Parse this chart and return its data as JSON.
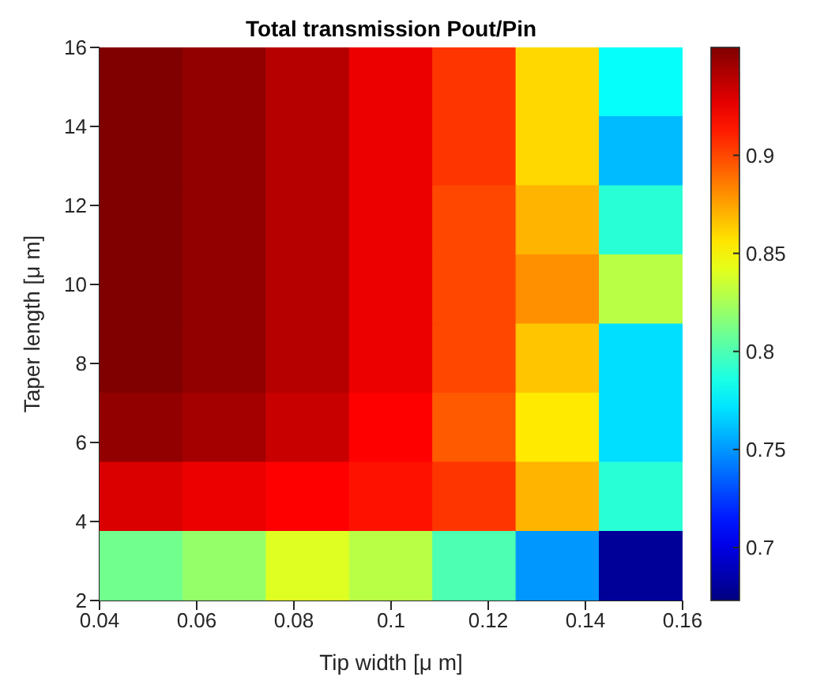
{
  "chart_data": {
    "type": "heatmap",
    "title": "Total transmission Pout/Pin",
    "xlabel": "Tip width [μ m]",
    "ylabel": "Taper length [μ m]",
    "xlim": [
      0.04,
      0.16
    ],
    "xticks": [
      0.04,
      0.06,
      0.08,
      0.1,
      0.12,
      0.14,
      0.16
    ],
    "ylim": [
      2,
      16
    ],
    "yticks": [
      2,
      4,
      6,
      8,
      10,
      12,
      14,
      16
    ],
    "clim": [
      0.673,
      0.955
    ],
    "cticks": [
      0.7,
      0.75,
      0.8,
      0.85,
      0.9
    ],
    "cells": [
      [
        0.955,
        0.95,
        0.94,
        0.925,
        0.905,
        0.86,
        0.78
      ],
      [
        0.955,
        0.95,
        0.94,
        0.925,
        0.905,
        0.86,
        0.76
      ],
      [
        0.955,
        0.95,
        0.94,
        0.925,
        0.9,
        0.87,
        0.79
      ],
      [
        0.955,
        0.95,
        0.94,
        0.925,
        0.9,
        0.88,
        0.83
      ],
      [
        0.955,
        0.95,
        0.94,
        0.925,
        0.9,
        0.865,
        0.77
      ],
      [
        0.95,
        0.945,
        0.935,
        0.92,
        0.895,
        0.855,
        0.77
      ],
      [
        0.93,
        0.925,
        0.92,
        0.915,
        0.905,
        0.87,
        0.79
      ],
      [
        0.81,
        0.82,
        0.84,
        0.83,
        0.8,
        0.75,
        0.68
      ]
    ]
  }
}
